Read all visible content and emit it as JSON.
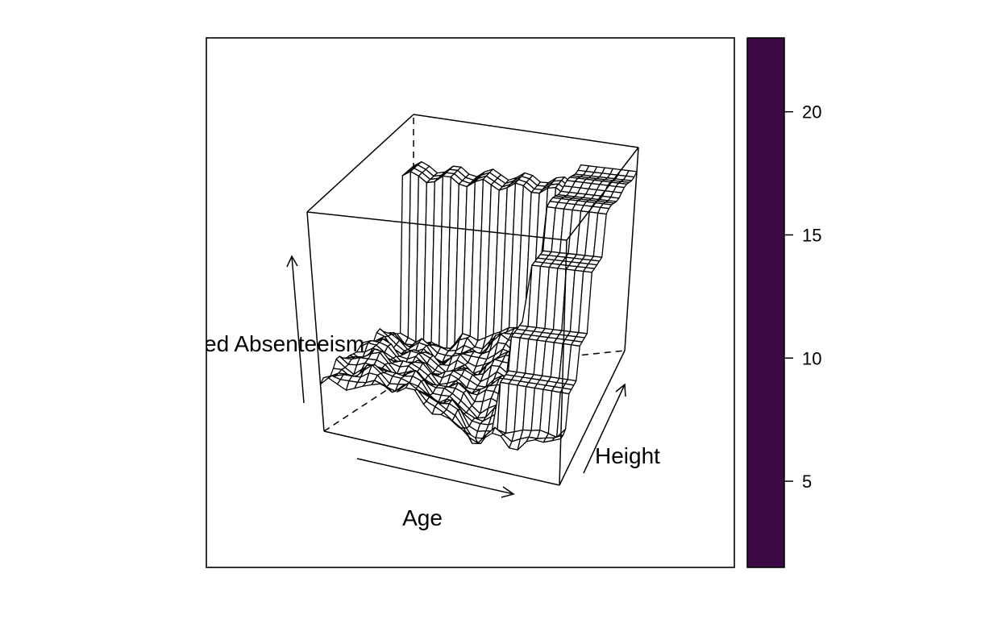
{
  "chart_data": {
    "type": "surface",
    "xlabel": "Age",
    "ylabel": "Height",
    "zlabel": "ed Absenteeism",
    "colorbar": {
      "ticks": [
        5,
        10,
        15,
        20
      ],
      "range": [
        1.5,
        23
      ],
      "color": "#3b0a45"
    },
    "grid": false,
    "legend": "colorbar-right"
  }
}
